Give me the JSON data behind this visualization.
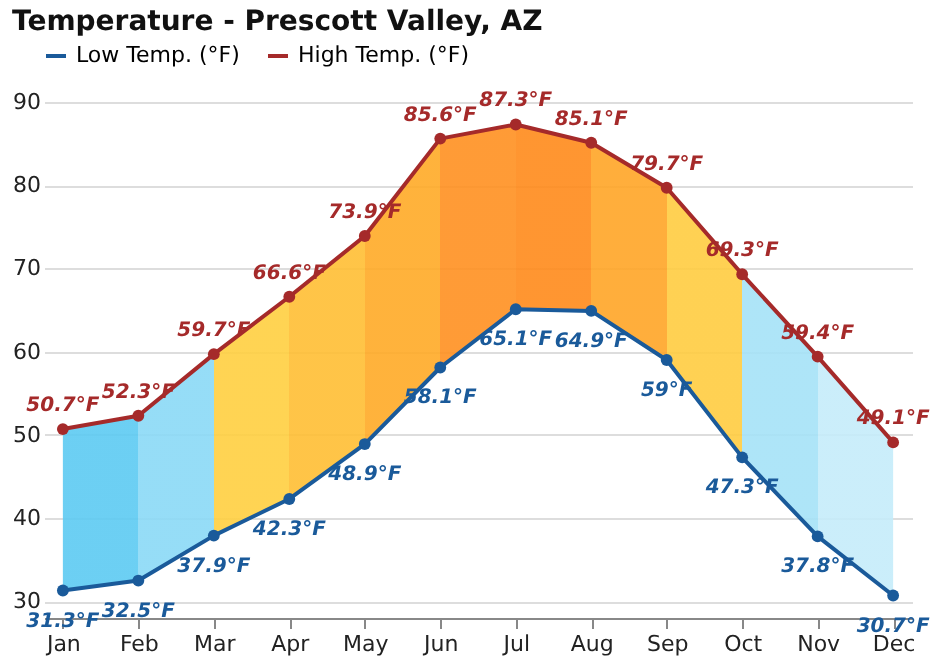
{
  "chart_data": {
    "type": "line",
    "title": "Temperature - Prescott Valley, AZ",
    "categories": [
      "Jan",
      "Feb",
      "Mar",
      "Apr",
      "May",
      "Jun",
      "Jul",
      "Aug",
      "Sep",
      "Oct",
      "Nov",
      "Dec"
    ],
    "series": [
      {
        "name": "Low Temp. (°F)",
        "color": "#1a5a9a",
        "values": [
          31.3,
          32.5,
          37.9,
          42.3,
          48.9,
          58.1,
          65.1,
          64.9,
          59,
          47.3,
          37.8,
          30.7
        ],
        "value_labels": [
          "31.3°F",
          "32.5°F",
          "37.9°F",
          "42.3°F",
          "48.9°F",
          "58.1°F",
          "65.1°F",
          "64.9°F",
          "59°F",
          "47.3°F",
          "37.8°F",
          "30.7°F"
        ]
      },
      {
        "name": "High Temp. (°F)",
        "color": "#a52a2a",
        "values": [
          50.7,
          52.3,
          59.7,
          66.6,
          73.9,
          85.6,
          87.3,
          85.1,
          79.7,
          69.3,
          59.4,
          49.1
        ],
        "lower": [
          31.3,
          32.5,
          37.9,
          42.3,
          48.9,
          58.1,
          65.1,
          64.9,
          59,
          47.3,
          37.8,
          30.7
        ],
        "upper": [
          50.7,
          52.3,
          59.7,
          66.6,
          73.9,
          85.6,
          87.3,
          85.1,
          79.7,
          69.3,
          59.4,
          49.1
        ],
        "colors": [
          "#5ccaf2",
          "#8ad9f6",
          "#ffcf40",
          "#ffbe33",
          "#ffaa26",
          "#ff9020",
          "#ff8a1a",
          "#ffa526",
          "#ffcc40",
          "#a5e2f7",
          "#c5ecfa",
          "#c5ecfa"
        ],
        "value_labels": [
          "50.7°F",
          "52.3°F",
          "59.7°F",
          "66.6°F",
          "73.9°F",
          "85.6°F",
          "87.3°F",
          "85.1°F",
          "79.7°F",
          "69.3°F",
          "59.4°F",
          "49.1°F"
        ]
      }
    ],
    "ylim": [
      28,
      90
    ],
    "yticks": [
      30,
      40,
      50,
      60,
      70,
      80,
      90
    ],
    "grid": "y",
    "legend": "top",
    "marker": "circle",
    "line_style": "solid"
  }
}
